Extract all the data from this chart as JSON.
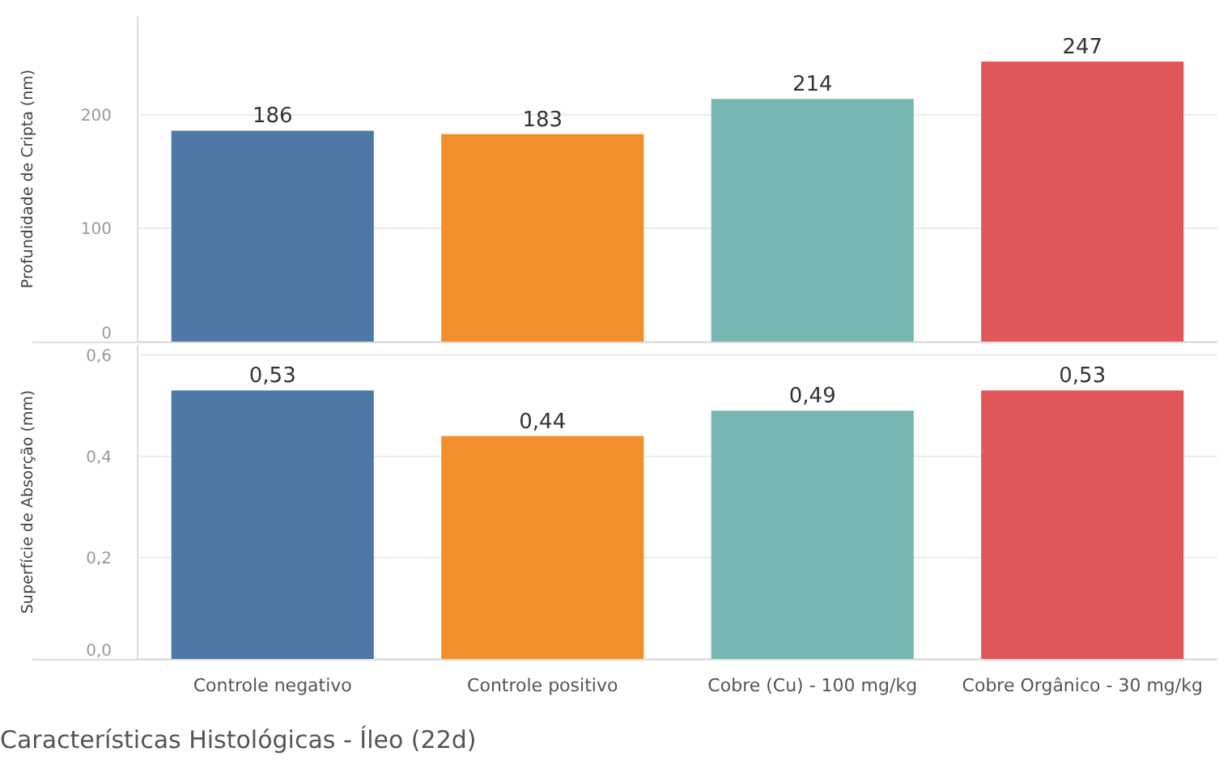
{
  "chart_data": [
    {
      "type": "bar",
      "ylabel": "Profundidade de Cripta (nm)",
      "categories": [
        null,
        null,
        null,
        null
      ],
      "values": [
        186,
        183,
        214,
        247
      ],
      "colors": [
        "#4e79a7",
        "#f28e2b",
        "#76b7b2",
        "#e15759"
      ],
      "data_labels": true,
      "ylim": [
        0,
        287
      ],
      "yticks": [
        0,
        100,
        200
      ],
      "grid": "y",
      "tick_labels": "y"
    },
    {
      "type": "bar",
      "ylabel": "Superfície de Absorção (mm)",
      "categories": [
        "Controle negativo",
        "Controle positivo",
        "Cobre (Cu) - 100 mg/kg",
        "Cobre Orgânico - 30 mg/kg"
      ],
      "values": [
        0.53,
        0.44,
        0.49,
        0.53
      ],
      "colors": [
        "#4e79a7",
        "#f28e2b",
        "#76b7b2",
        "#e15759"
      ],
      "value_labels": [
        "0,53",
        "0,44",
        "0,49",
        "0,53"
      ],
      "ylim": [
        0,
        0.62
      ],
      "yticks": [
        {
          "value": 0,
          "label": "0,0"
        },
        {
          "value": 0.2,
          "label": "0,2"
        },
        {
          "value": 0.4,
          "label": "0,4"
        },
        {
          "value": 0.6,
          "label": "0,6"
        }
      ],
      "grid": "y",
      "annotations": [
        "Características Histológicas - Íleo (22d)"
      ]
    }
  ]
}
